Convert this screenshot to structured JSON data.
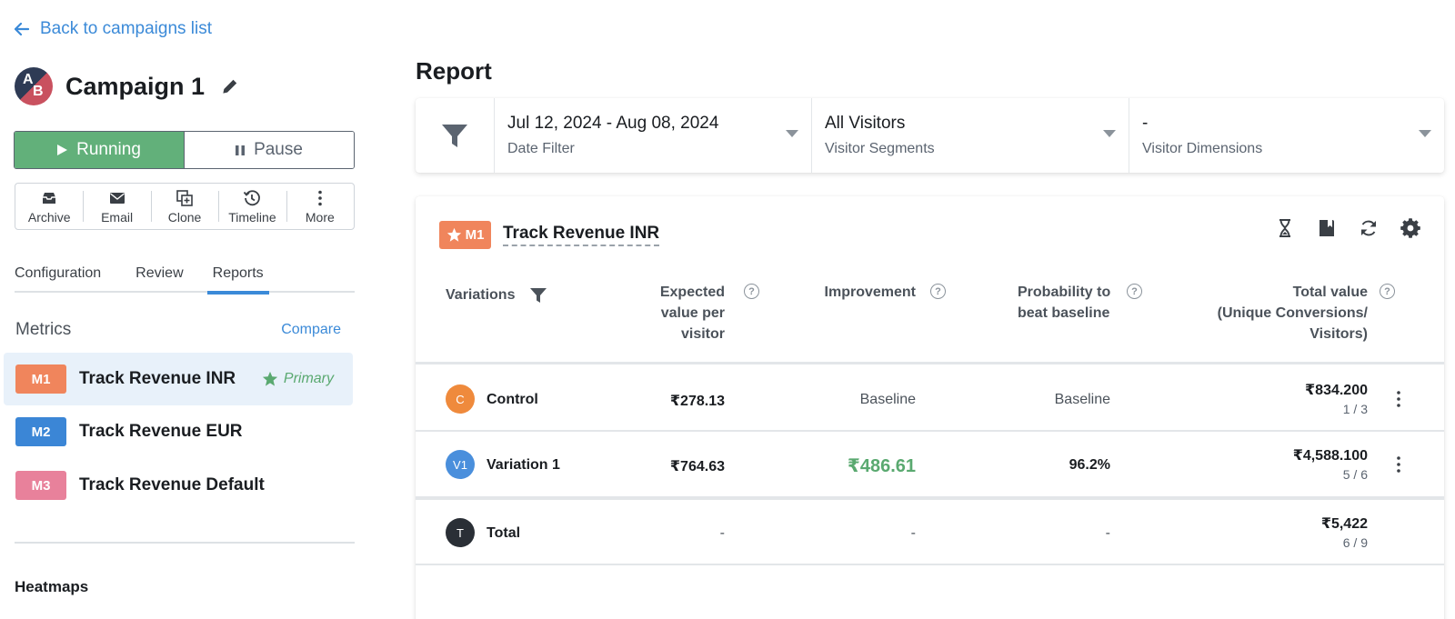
{
  "nav": {
    "back_label": "Back to campaigns list"
  },
  "campaign": {
    "avatar_a": "A",
    "avatar_b": "B",
    "title": "Campaign 1",
    "running_label": "Running",
    "pause_label": "Pause"
  },
  "actions": [
    {
      "label": "Archive",
      "icon": "archive-icon"
    },
    {
      "label": "Email",
      "icon": "email-icon"
    },
    {
      "label": "Clone",
      "icon": "clone-icon"
    },
    {
      "label": "Timeline",
      "icon": "timeline-icon"
    },
    {
      "label": "More",
      "icon": "more-vertical-icon"
    }
  ],
  "tabs": [
    {
      "label": "Configuration",
      "active": false
    },
    {
      "label": "Review",
      "active": false
    },
    {
      "label": "Reports",
      "active": true
    }
  ],
  "metrics": {
    "title": "Metrics",
    "compare_label": "Compare",
    "primary_label": "Primary",
    "items": [
      {
        "badge": "M1",
        "name": "Track Revenue INR",
        "color": "#f0855c",
        "selected": true,
        "primary": true
      },
      {
        "badge": "M2",
        "name": "Track Revenue EUR",
        "color": "#3b86d6",
        "selected": false,
        "primary": false
      },
      {
        "badge": "M3",
        "name": "Track Revenue Default",
        "color": "#e8819b",
        "selected": false,
        "primary": false
      }
    ]
  },
  "heatmaps_label": "Heatmaps",
  "report": {
    "title": "Report",
    "filters": [
      {
        "value": "Jul 12, 2024 - Aug 08, 2024",
        "label": "Date Filter"
      },
      {
        "value": "All Visitors",
        "label": "Visitor Segments"
      },
      {
        "value": "-",
        "label": "Visitor Dimensions"
      }
    ],
    "card": {
      "badge": "M1",
      "metric_name": "Track Revenue INR",
      "columns": {
        "variations": "Variations",
        "expected": [
          "Expected",
          "value per",
          "visitor"
        ],
        "improvement": "Improvement",
        "probability": [
          "Probability to",
          "beat baseline"
        ],
        "total": [
          "Total value",
          "(Unique Conversions/",
          "Visitors)"
        ]
      },
      "rows": [
        {
          "avatar": "C",
          "avatar_color": "#ef8a3c",
          "name": "Control",
          "expected": "₹278.13",
          "improvement": "Baseline",
          "probability": "Baseline",
          "total": "₹834.200",
          "ratio": "1 / 3"
        },
        {
          "avatar": "V1",
          "avatar_color": "#4a8fdc",
          "name": "Variation 1",
          "expected": "₹764.63",
          "improvement": "₹486.61",
          "probability": "96.2%",
          "total": "₹4,588.100",
          "ratio": "5 / 6"
        }
      ],
      "total_row": {
        "avatar": "T",
        "avatar_color": "#2a2f36",
        "name": "Total",
        "expected": "-",
        "improvement": "-",
        "probability": "-",
        "total": "₹5,422",
        "ratio": "6 / 9"
      }
    }
  }
}
